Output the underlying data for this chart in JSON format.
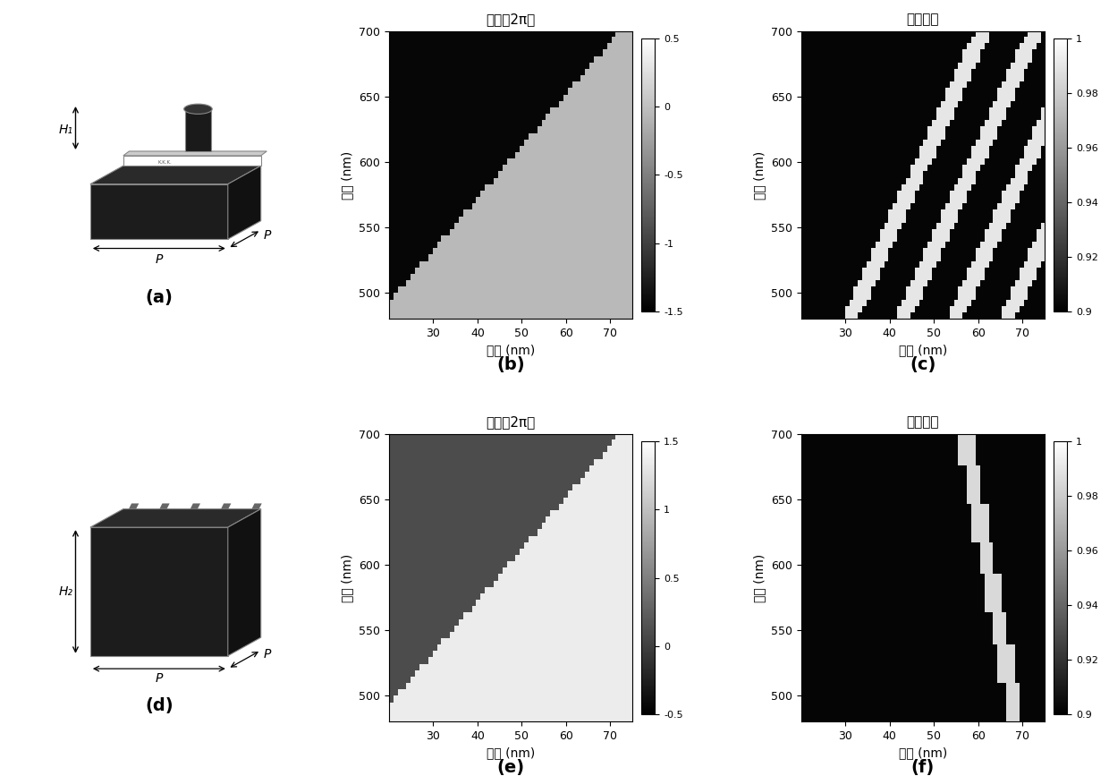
{
  "title_b": "相位（2π）",
  "title_c": "透射系数",
  "title_e": "相位（2π）",
  "title_f": "透射系数",
  "xlabel": "半径 (nm)",
  "ylabel": "波长 (nm)",
  "label_a": "(a)",
  "label_b": "(b)",
  "label_c": "(c)",
  "label_d": "(d)",
  "label_e": "(e)",
  "label_f": "(f)",
  "H1_label": "H₁",
  "H2_label": "H₂",
  "P_label": "P",
  "xmin": 20,
  "xmax": 75,
  "ymin": 480,
  "ymax": 700,
  "xticks": [
    30,
    40,
    50,
    60,
    70
  ],
  "yticks": [
    500,
    550,
    600,
    650,
    700
  ],
  "phase_b_vmin": -1.5,
  "phase_b_vmax": 0.5,
  "phase_e_vmin": -0.5,
  "phase_e_vmax": 1.5,
  "trans_vmin": 0.9,
  "trans_vmax": 1.0,
  "bg_color": "#ffffff"
}
